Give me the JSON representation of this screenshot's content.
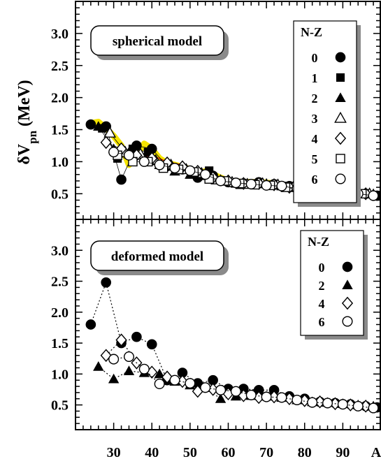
{
  "chart_data": [
    {
      "type": "scatter",
      "panel": "top",
      "title": "spherical model",
      "ylabel": "δV",
      "ylabel_sub": "pn",
      "ylabel_unit": " (MeV)",
      "xlabel": "",
      "ylim": [
        0.1,
        3.5
      ],
      "xlim": [
        20,
        100
      ],
      "yticks": [
        "0.5",
        "1.0",
        "1.5",
        "2.0",
        "2.5",
        "3.0"
      ],
      "ytick_values": [
        0.5,
        1.0,
        1.5,
        2.0,
        2.5,
        3.0
      ],
      "legend_title": "N-Z",
      "legend_placement": "top-right",
      "yellow_band": [
        [
          24,
          1.6
        ],
        [
          26,
          1.62
        ],
        [
          28,
          1.52
        ],
        [
          30,
          1.4
        ],
        [
          32,
          1.25
        ],
        [
          34,
          0.95
        ],
        [
          36,
          1.1
        ],
        [
          38,
          1.28
        ],
        [
          40,
          1.2
        ],
        [
          42,
          1.05
        ],
        [
          44,
          0.98
        ],
        [
          46,
          0.95
        ],
        [
          48,
          0.92
        ],
        [
          50,
          0.88
        ],
        [
          52,
          0.82
        ],
        [
          54,
          0.85
        ],
        [
          56,
          0.8
        ],
        [
          58,
          0.75
        ],
        [
          60,
          0.7
        ],
        [
          64,
          0.68
        ],
        [
          68,
          0.68
        ],
        [
          72,
          0.66
        ],
        [
          76,
          0.62
        ],
        [
          80,
          0.58
        ],
        [
          84,
          0.56
        ],
        [
          88,
          0.55
        ],
        [
          92,
          0.54
        ],
        [
          96,
          0.5
        ],
        [
          99,
          0.48
        ]
      ],
      "red_band": [
        [
          34,
          1.0
        ],
        [
          36,
          1.05
        ],
        [
          40,
          1.1
        ],
        [
          44,
          1.0
        ],
        [
          48,
          0.95
        ],
        [
          52,
          0.85
        ],
        [
          56,
          0.78
        ],
        [
          60,
          0.72
        ],
        [
          64,
          0.68
        ],
        [
          68,
          0.66
        ],
        [
          72,
          0.65
        ],
        [
          76,
          0.6
        ],
        [
          78,
          0.55
        ],
        [
          80,
          0.52
        ],
        [
          84,
          0.55
        ],
        [
          88,
          0.55
        ],
        [
          92,
          0.53
        ]
      ],
      "series": [
        {
          "name": "0",
          "marker": "filled-circle",
          "points": [
            [
              24,
              1.58
            ],
            [
              28,
              1.55
            ],
            [
              32,
              0.72
            ],
            [
              36,
              1.25
            ],
            [
              40,
              1.2
            ],
            [
              44,
              0.93
            ],
            [
              48,
              0.88
            ],
            [
              52,
              0.75
            ],
            [
              56,
              0.78
            ],
            [
              60,
              0.68
            ],
            [
              64,
              0.66
            ],
            [
              68,
              0.68
            ],
            [
              72,
              0.65
            ],
            [
              76,
              0.62
            ],
            [
              80,
              0.56
            ],
            [
              84,
              0.56
            ],
            [
              88,
              0.54
            ],
            [
              92,
              0.52
            ],
            [
              96,
              0.5
            ],
            [
              99,
              0.47
            ]
          ]
        },
        {
          "name": "1",
          "marker": "filled-square",
          "points": [
            [
              27,
              1.52
            ],
            [
              31,
              1.05
            ],
            [
              35,
              1.2
            ],
            [
              39,
              1.15
            ],
            [
              43,
              0.9
            ],
            [
              47,
              0.88
            ],
            [
              51,
              0.82
            ],
            [
              55,
              0.86
            ],
            [
              59,
              0.7
            ],
            [
              63,
              0.64
            ],
            [
              67,
              0.66
            ],
            [
              71,
              0.64
            ],
            [
              75,
              0.62
            ],
            [
              79,
              0.55
            ],
            [
              83,
              0.55
            ],
            [
              87,
              0.56
            ],
            [
              91,
              0.53
            ],
            [
              95,
              0.5
            ],
            [
              99,
              0.48
            ]
          ]
        },
        {
          "name": "2",
          "marker": "filled-triangle",
          "points": [
            [
              26,
              1.55
            ],
            [
              30,
              1.2
            ],
            [
              34,
              1.15
            ],
            [
              38,
              1.05
            ],
            [
              42,
              0.95
            ],
            [
              46,
              0.85
            ],
            [
              50,
              0.8
            ],
            [
              54,
              0.78
            ],
            [
              58,
              0.72
            ],
            [
              62,
              0.66
            ],
            [
              66,
              0.65
            ],
            [
              70,
              0.66
            ],
            [
              74,
              0.62
            ],
            [
              78,
              0.6
            ],
            [
              82,
              0.55
            ],
            [
              86,
              0.55
            ],
            [
              90,
              0.56
            ],
            [
              94,
              0.52
            ],
            [
              98,
              0.5
            ]
          ]
        },
        {
          "name": "3",
          "marker": "open-triangle",
          "points": [
            [
              29,
              1.45
            ],
            [
              33,
              1.15
            ],
            [
              37,
              1.12
            ],
            [
              41,
              1.02
            ],
            [
              45,
              0.95
            ],
            [
              49,
              0.88
            ],
            [
              53,
              0.82
            ],
            [
              57,
              0.72
            ],
            [
              61,
              0.68
            ],
            [
              65,
              0.65
            ],
            [
              69,
              0.66
            ],
            [
              73,
              0.64
            ],
            [
              77,
              0.6
            ],
            [
              81,
              0.56
            ],
            [
              85,
              0.55
            ],
            [
              89,
              0.54
            ],
            [
              93,
              0.52
            ],
            [
              97,
              0.5
            ]
          ]
        },
        {
          "name": "4",
          "marker": "open-diamond",
          "points": [
            [
              28,
              1.3
            ],
            [
              32,
              1.2
            ],
            [
              36,
              1.1
            ],
            [
              40,
              1.05
            ],
            [
              44,
              0.98
            ],
            [
              48,
              0.92
            ],
            [
              52,
              0.85
            ],
            [
              56,
              0.75
            ],
            [
              60,
              0.7
            ],
            [
              64,
              0.66
            ],
            [
              68,
              0.66
            ],
            [
              72,
              0.64
            ],
            [
              76,
              0.6
            ],
            [
              80,
              0.57
            ],
            [
              84,
              0.55
            ],
            [
              88,
              0.54
            ],
            [
              92,
              0.52
            ],
            [
              96,
              0.5
            ]
          ]
        },
        {
          "name": "5",
          "marker": "open-square",
          "points": [
            [
              31,
              1.1
            ],
            [
              35,
              1.0
            ],
            [
              39,
              1.0
            ],
            [
              43,
              0.9
            ],
            [
              47,
              0.88
            ],
            [
              51,
              0.84
            ],
            [
              55,
              0.73
            ],
            [
              59,
              0.7
            ],
            [
              63,
              0.66
            ],
            [
              67,
              0.64
            ],
            [
              71,
              0.63
            ],
            [
              75,
              0.6
            ],
            [
              79,
              0.56
            ],
            [
              83,
              0.55
            ],
            [
              87,
              0.53
            ],
            [
              91,
              0.52
            ],
            [
              95,
              0.5
            ]
          ]
        },
        {
          "name": "6",
          "marker": "open-circle",
          "points": [
            [
              30,
              1.15
            ],
            [
              34,
              1.1
            ],
            [
              38,
              1.0
            ],
            [
              42,
              0.95
            ],
            [
              46,
              0.9
            ],
            [
              50,
              0.86
            ],
            [
              54,
              0.8
            ],
            [
              58,
              0.7
            ],
            [
              62,
              0.67
            ],
            [
              66,
              0.65
            ],
            [
              70,
              0.63
            ],
            [
              74,
              0.62
            ],
            [
              78,
              0.58
            ],
            [
              82,
              0.55
            ],
            [
              86,
              0.54
            ],
            [
              90,
              0.53
            ],
            [
              94,
              0.5
            ],
            [
              98,
              0.47
            ]
          ]
        }
      ]
    },
    {
      "type": "scatter",
      "panel": "bottom",
      "title": "deformed model",
      "xlabel": "A",
      "ylim": [
        0.1,
        3.5
      ],
      "xlim": [
        20,
        100
      ],
      "yticks": [
        "0.5",
        "1.0",
        "1.5",
        "2.0",
        "2.5",
        "3.0"
      ],
      "ytick_values": [
        0.5,
        1.0,
        1.5,
        2.0,
        2.5,
        3.0
      ],
      "xticks": [
        "30",
        "40",
        "50",
        "60",
        "70",
        "80",
        "90"
      ],
      "xtick_values": [
        30,
        40,
        50,
        60,
        70,
        80,
        90
      ],
      "legend_title": "N-Z",
      "legend_placement": "top-right",
      "series": [
        {
          "name": "0",
          "marker": "filled-circle",
          "dotted": true,
          "points": [
            [
              24,
              1.8
            ],
            [
              28,
              2.48
            ],
            [
              32,
              1.5
            ],
            [
              36,
              1.6
            ],
            [
              40,
              1.48
            ],
            [
              44,
              0.9
            ],
            [
              48,
              1.02
            ],
            [
              52,
              0.85
            ],
            [
              56,
              0.9
            ],
            [
              60,
              0.76
            ],
            [
              64,
              0.76
            ],
            [
              68,
              0.74
            ],
            [
              72,
              0.74
            ],
            [
              76,
              0.64
            ],
            [
              80,
              0.6
            ],
            [
              84,
              0.55
            ],
            [
              88,
              0.53
            ],
            [
              92,
              0.51
            ],
            [
              96,
              0.48
            ],
            [
              99,
              0.46
            ]
          ]
        },
        {
          "name": "2",
          "marker": "filled-triangle",
          "dotted": true,
          "points": [
            [
              26,
              1.12
            ],
            [
              30,
              0.92
            ],
            [
              34,
              1.05
            ],
            [
              38,
              1.02
            ],
            [
              42,
              1.0
            ],
            [
              46,
              0.88
            ],
            [
              50,
              0.82
            ],
            [
              54,
              0.78
            ],
            [
              58,
              0.6
            ],
            [
              62,
              0.64
            ],
            [
              66,
              0.65
            ],
            [
              70,
              0.64
            ],
            [
              74,
              0.62
            ],
            [
              78,
              0.58
            ],
            [
              82,
              0.55
            ],
            [
              86,
              0.54
            ],
            [
              90,
              0.52
            ],
            [
              94,
              0.5
            ],
            [
              98,
              0.48
            ]
          ]
        },
        {
          "name": "4",
          "marker": "open-diamond",
          "dotted": true,
          "points": [
            [
              28,
              1.3
            ],
            [
              32,
              1.55
            ],
            [
              36,
              1.18
            ],
            [
              40,
              1.03
            ],
            [
              44,
              0.95
            ],
            [
              48,
              0.88
            ],
            [
              52,
              0.72
            ],
            [
              56,
              0.75
            ],
            [
              60,
              0.68
            ],
            [
              64,
              0.65
            ],
            [
              68,
              0.62
            ],
            [
              72,
              0.63
            ],
            [
              76,
              0.6
            ],
            [
              80,
              0.57
            ],
            [
              84,
              0.55
            ],
            [
              88,
              0.52
            ],
            [
              92,
              0.5
            ],
            [
              96,
              0.48
            ]
          ]
        },
        {
          "name": "6",
          "marker": "open-circle",
          "dotted": true,
          "points": [
            [
              30,
              1.24
            ],
            [
              34,
              1.28
            ],
            [
              38,
              1.08
            ],
            [
              42,
              0.84
            ],
            [
              46,
              0.9
            ],
            [
              50,
              0.85
            ],
            [
              54,
              0.78
            ],
            [
              58,
              0.74
            ],
            [
              62,
              0.72
            ],
            [
              66,
              0.66
            ],
            [
              70,
              0.63
            ],
            [
              74,
              0.62
            ],
            [
              78,
              0.58
            ],
            [
              82,
              0.54
            ],
            [
              86,
              0.53
            ],
            [
              90,
              0.51
            ],
            [
              94,
              0.48
            ],
            [
              98,
              0.45
            ]
          ]
        }
      ]
    }
  ]
}
